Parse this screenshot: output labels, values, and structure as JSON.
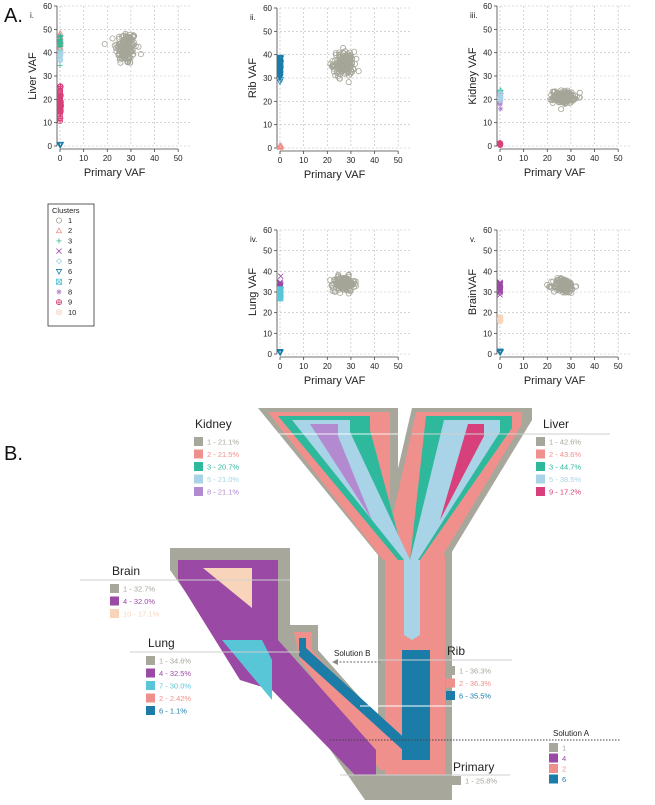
{
  "labels": {
    "section_a": "A.",
    "section_b": "B."
  },
  "colors": {
    "c1": "#a7a79b",
    "c2": "#f0908c",
    "c3": "#2fb99c",
    "c4": "#9a4aa5",
    "c5": "#a9d3e6",
    "c6": "#1b7ca8",
    "c7": "#59c6d8",
    "c8": "#b38ad0",
    "c9": "#d7407a",
    "c10": "#f8d4bb",
    "grey_point": "#a5a598"
  },
  "chart_data": [
    {
      "type": "scatter",
      "panel": "i.",
      "xlabel": "Primary  VAF",
      "ylabel": "Liver VAF",
      "xlim": [
        0,
        55
      ],
      "ylim": [
        0,
        60
      ],
      "xticks": [
        0,
        10,
        20,
        30,
        40,
        50
      ],
      "yticks": [
        0,
        10,
        20,
        30,
        40,
        50,
        60
      ],
      "grid": true,
      "clusters": [
        {
          "cluster": 1,
          "center": [
            28,
            42
          ],
          "spread": [
            5,
            8
          ],
          "n": 150
        },
        {
          "cluster": 2,
          "center": [
            0,
            45
          ],
          "spread": [
            0.4,
            5
          ],
          "n": 20
        },
        {
          "cluster": 3,
          "center": [
            0,
            44
          ],
          "spread": [
            0.4,
            5
          ],
          "n": 25
        },
        {
          "cluster": 5,
          "center": [
            0,
            38
          ],
          "spread": [
            0.4,
            4
          ],
          "n": 15
        },
        {
          "cluster": 9,
          "center": [
            0,
            18
          ],
          "spread": [
            0.4,
            7
          ],
          "n": 60
        },
        {
          "cluster": 6,
          "center": [
            0,
            0.5
          ],
          "spread": [
            0.5,
            0.5
          ],
          "n": 8
        }
      ]
    },
    {
      "type": "scatter",
      "panel": "ii.",
      "xlabel": "Primary  VAF",
      "ylabel": "Rib VAF",
      "xlim": [
        0,
        55
      ],
      "ylim": [
        0,
        60
      ],
      "xticks": [
        0,
        10,
        20,
        30,
        40,
        50
      ],
      "yticks": [
        0,
        10,
        20,
        30,
        40,
        50,
        60
      ],
      "grid": true,
      "clusters": [
        {
          "cluster": 1,
          "center": [
            27,
            36
          ],
          "spread": [
            5,
            6
          ],
          "n": 150
        },
        {
          "cluster": 6,
          "center": [
            0,
            34
          ],
          "spread": [
            0.4,
            5
          ],
          "n": 80
        },
        {
          "cluster": 2,
          "center": [
            0,
            0.8
          ],
          "spread": [
            0.6,
            0.5
          ],
          "n": 10
        }
      ]
    },
    {
      "type": "scatter",
      "panel": "iii.",
      "xlabel": "Primary  VAF",
      "ylabel": "Kidney VAF",
      "xlim": [
        0,
        55
      ],
      "ylim": [
        0,
        60
      ],
      "xticks": [
        0,
        10,
        20,
        30,
        40,
        50
      ],
      "yticks": [
        0,
        10,
        20,
        30,
        40,
        50,
        60
      ],
      "grid": true,
      "clusters": [
        {
          "cluster": 1,
          "center": [
            27,
            21
          ],
          "spread": [
            5,
            3
          ],
          "n": 150
        },
        {
          "cluster": 3,
          "center": [
            0,
            22
          ],
          "spread": [
            0.4,
            2.5
          ],
          "n": 20
        },
        {
          "cluster": 8,
          "center": [
            0,
            20
          ],
          "spread": [
            0.4,
            3
          ],
          "n": 30
        },
        {
          "cluster": 5,
          "center": [
            0,
            21
          ],
          "spread": [
            0.4,
            2
          ],
          "n": 10
        },
        {
          "cluster": 9,
          "center": [
            0,
            0.8
          ],
          "spread": [
            0.5,
            0.5
          ],
          "n": 8
        }
      ]
    },
    {
      "type": "scatter",
      "panel": "iv.",
      "xlabel": "Primary  VAF",
      "ylabel": "Lung VAF",
      "xlim": [
        0,
        55
      ],
      "ylim": [
        0,
        60
      ],
      "xticks": [
        0,
        10,
        20,
        30,
        40,
        50
      ],
      "yticks": [
        0,
        10,
        20,
        30,
        40,
        50,
        60
      ],
      "grid": true,
      "clusters": [
        {
          "cluster": 1,
          "center": [
            27,
            34
          ],
          "spread": [
            5,
            4
          ],
          "n": 150
        },
        {
          "cluster": 4,
          "center": [
            0,
            33
          ],
          "spread": [
            0.4,
            3
          ],
          "n": 30
        },
        {
          "cluster": 7,
          "center": [
            0,
            29
          ],
          "spread": [
            0.4,
            3
          ],
          "n": 20
        },
        {
          "cluster": 6,
          "center": [
            0,
            1
          ],
          "spread": [
            0.5,
            0.6
          ],
          "n": 8
        }
      ]
    },
    {
      "type": "scatter",
      "panel": "v.",
      "xlabel": "Primary  VAF",
      "ylabel": "BrainVAF",
      "xlim": [
        0,
        55
      ],
      "ylim": [
        0,
        60
      ],
      "xticks": [
        0,
        10,
        20,
        30,
        40,
        50
      ],
      "yticks": [
        0,
        10,
        20,
        30,
        40,
        50,
        60
      ],
      "grid": true,
      "clusters": [
        {
          "cluster": 1,
          "center": [
            27,
            33
          ],
          "spread": [
            5,
            4
          ],
          "n": 150
        },
        {
          "cluster": 4,
          "center": [
            0,
            32
          ],
          "spread": [
            0.4,
            3.5
          ],
          "n": 30
        },
        {
          "cluster": 10,
          "center": [
            0,
            17
          ],
          "spread": [
            0.4,
            1.5
          ],
          "n": 6
        },
        {
          "cluster": 6,
          "center": [
            0,
            1
          ],
          "spread": [
            0.5,
            0.6
          ],
          "n": 10
        }
      ]
    }
  ],
  "legend": {
    "title": "Clusters",
    "entries": [
      {
        "label": "1",
        "symbol": "circle",
        "color": "#a5a598"
      },
      {
        "label": "2",
        "symbol": "triangle",
        "color": "#f0908c"
      },
      {
        "label": "3",
        "symbol": "plus",
        "color": "#2fb99c"
      },
      {
        "label": "4",
        "symbol": "cross",
        "color": "#9a4aa5"
      },
      {
        "label": "5",
        "symbol": "diamond",
        "color": "#a9d3e6"
      },
      {
        "label": "6",
        "symbol": "triangle-down",
        "color": "#1b7ca8"
      },
      {
        "label": "7",
        "symbol": "square-cross",
        "color": "#59c6d8"
      },
      {
        "label": "8",
        "symbol": "star",
        "color": "#b38ad0"
      },
      {
        "label": "9",
        "symbol": "circle-plus",
        "color": "#d7407a"
      },
      {
        "label": "10",
        "symbol": "circle-x",
        "color": "#f8d4bb"
      }
    ]
  },
  "tissues": {
    "kidney": {
      "name": "Kidney",
      "entries": [
        {
          "text": "1 - 21.1%",
          "color": "#a7a79b"
        },
        {
          "text": "2 - 21.5%",
          "color": "#f0908c"
        },
        {
          "text": "3 - 20.7%",
          "color": "#2fb99c"
        },
        {
          "text": "5 - 21.0%",
          "color": "#a9d3e6"
        },
        {
          "text": "8 - 21.1%",
          "color": "#b38ad0"
        }
      ]
    },
    "liver": {
      "name": "Liver",
      "entries": [
        {
          "text": "1 - 42.6%",
          "color": "#a7a79b"
        },
        {
          "text": "2 - 43.6%",
          "color": "#f0908c"
        },
        {
          "text": "3 - 44.7%",
          "color": "#2fb99c"
        },
        {
          "text": "5 - 38.5%",
          "color": "#a9d3e6"
        },
        {
          "text": "9 - 17.2%",
          "color": "#d7407a"
        }
      ]
    },
    "brain": {
      "name": "Brain",
      "entries": [
        {
          "text": "1 - 32.7%",
          "color": "#a7a79b"
        },
        {
          "text": "4 - 32.0%",
          "color": "#9a4aa5"
        },
        {
          "text": "10 - 17.1%",
          "color": "#f8d4bb"
        }
      ]
    },
    "lung": {
      "name": "Lung",
      "entries": [
        {
          "text": "1 - 34.6%",
          "color": "#a7a79b"
        },
        {
          "text": "4 - 32.5%",
          "color": "#9a4aa5"
        },
        {
          "text": "7 - 30.0%",
          "color": "#59c6d8"
        },
        {
          "text": "2 - 2.42%",
          "color": "#f0908c"
        },
        {
          "text": "6 - 1.1%",
          "color": "#1b7ca8"
        }
      ]
    },
    "rib": {
      "name": "Rib",
      "entries": [
        {
          "text": "1 - 36.3%",
          "color": "#a7a79b"
        },
        {
          "text": "2 - 36.3%",
          "color": "#f0908c"
        },
        {
          "text": "6 - 35.5%",
          "color": "#1b7ca8"
        }
      ]
    },
    "primary": {
      "name": "Primary",
      "entries": [
        {
          "text": "1 - 25.8%",
          "color": "#a7a79b"
        }
      ]
    }
  },
  "solution_a": {
    "title": "Solution A",
    "entries": [
      {
        "text": "1",
        "color": "#a7a79b"
      },
      {
        "text": "4",
        "color": "#9a4aa5"
      },
      {
        "text": "2",
        "color": "#f0908c"
      },
      {
        "text": "6",
        "color": "#1b7ca8"
      }
    ]
  },
  "solution_b": {
    "label": "Solution B"
  }
}
